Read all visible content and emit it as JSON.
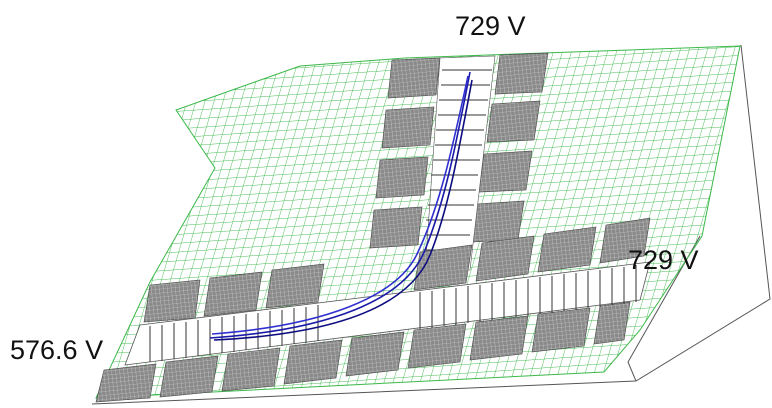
{
  "labels": {
    "top": "729 V",
    "right": "729 V",
    "left": "576.6 V"
  }
}
